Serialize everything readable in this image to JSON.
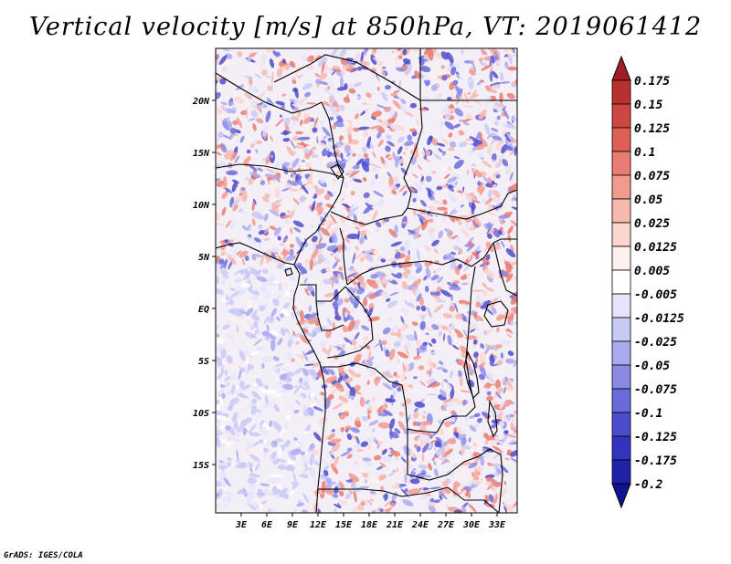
{
  "title": "Vertical velocity [m/s] at 850hPa, VT: 2019061412",
  "credit": "GrADS: IGES/COLA",
  "map": {
    "lat_labels": [
      "20N",
      "15N",
      "10N",
      "5N",
      "EQ",
      "5S",
      "10S",
      "15S"
    ],
    "lon_labels": [
      "3E",
      "6E",
      "9E",
      "12E",
      "15E",
      "18E",
      "21E",
      "24E",
      "27E",
      "30E",
      "33E"
    ]
  },
  "colorbar": {
    "labels": [
      "0.175",
      "0.15",
      "0.125",
      "0.1",
      "0.075",
      "0.05",
      "0.025",
      "0.0125",
      "0.005",
      "-0.005",
      "-0.0125",
      "-0.025",
      "-0.05",
      "-0.075",
      "-0.1",
      "-0.125",
      "-0.175",
      "-0.2"
    ],
    "colors": [
      "#a11e26",
      "#b8302f",
      "#cc4741",
      "#dd5f55",
      "#e97d72",
      "#f19a90",
      "#f7b8b0",
      "#fbd6d1",
      "#fdf0ee",
      "#ffffff",
      "#e4e4fb",
      "#c9c9f6",
      "#aaaaf0",
      "#8a8ae6",
      "#6a6adb",
      "#4c4ccd",
      "#3333bd",
      "#2020a8",
      "#121294"
    ]
  }
}
